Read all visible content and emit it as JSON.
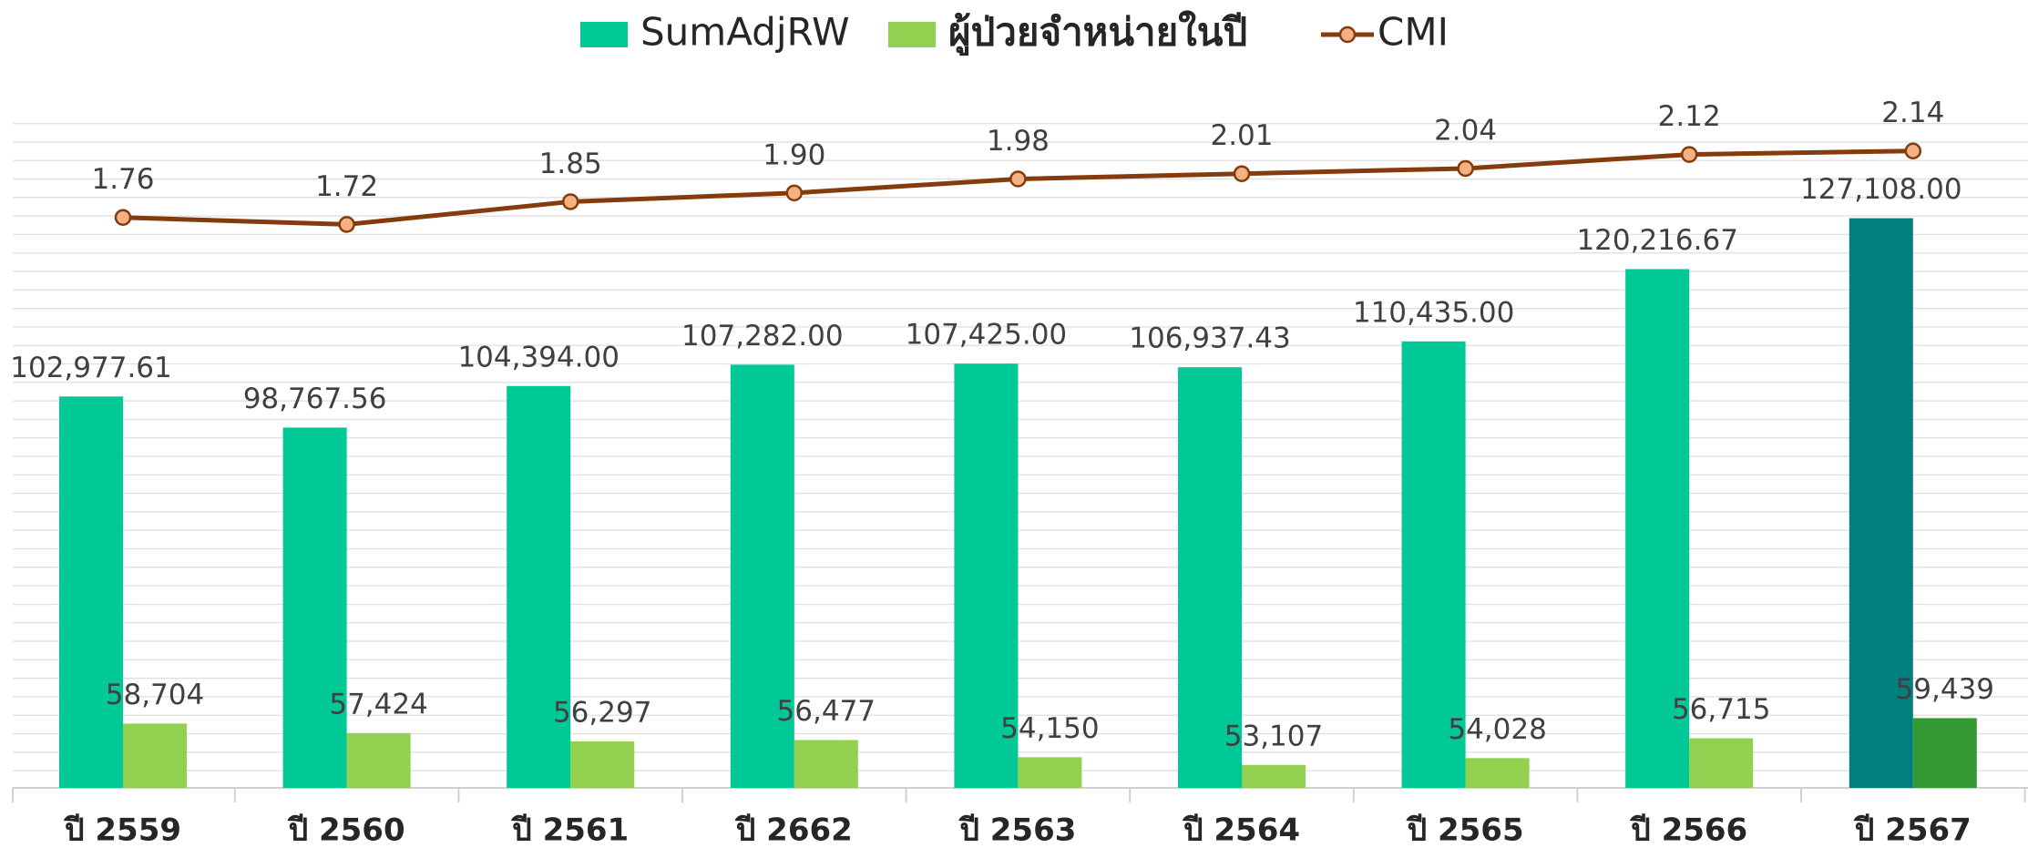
{
  "chart_data": {
    "type": "bar",
    "categories": [
      "ปี 2559",
      "ปี 2560",
      "ปี 2561",
      "ปี 2662",
      "ปี 2563",
      "ปี 2564",
      "ปี 2565",
      "ปี 2566",
      "ปี 2567"
    ],
    "series": [
      {
        "name": "SumAdjRW",
        "color": "#00c896",
        "colors": [
          "#00c896",
          "#00c896",
          "#00c896",
          "#00c896",
          "#00c896",
          "#00c896",
          "#00c896",
          "#00c896",
          "#007f7f"
        ],
        "values": [
          102977.61,
          98767.56,
          104394.0,
          107282.0,
          107425.0,
          106937.43,
          110435.0,
          120216.67,
          127108.0
        ],
        "value_labels": [
          "102,977.61",
          "98,767.56",
          "104,394.00",
          "107,282.00",
          "107,425.00",
          "106,937.43",
          "110,435.00",
          "120,216.67",
          "127,108.00"
        ]
      },
      {
        "name": "ผู้ป่วยจำหน่ายในปี",
        "color": "#92d050",
        "colors": [
          "#92d050",
          "#92d050",
          "#92d050",
          "#92d050",
          "#92d050",
          "#92d050",
          "#92d050",
          "#92d050",
          "#339933"
        ],
        "values": [
          58704,
          57424,
          56297,
          56477,
          54150,
          53107,
          54028,
          56715,
          59439
        ],
        "value_labels": [
          "58,704",
          "57,424",
          "56,297",
          "56,477",
          "54,150",
          "53,107",
          "54,028",
          "56,715",
          "59,439"
        ]
      },
      {
        "name": "CMI",
        "type": "line",
        "axis": "y2",
        "color": "#843c0c",
        "marker_color": "#f4b183",
        "values": [
          1.76,
          1.72,
          1.85,
          1.9,
          1.98,
          2.01,
          2.04,
          2.12,
          2.14
        ],
        "value_labels": [
          "1.76",
          "1.72",
          "1.85",
          "1.90",
          "1.98",
          "2.01",
          "2.04",
          "2.12",
          "2.14"
        ]
      }
    ],
    "ylim": [
      50000,
      140000
    ],
    "y2lim": [
      -1.5,
      2.3
    ],
    "legend": "top",
    "grid": true
  }
}
